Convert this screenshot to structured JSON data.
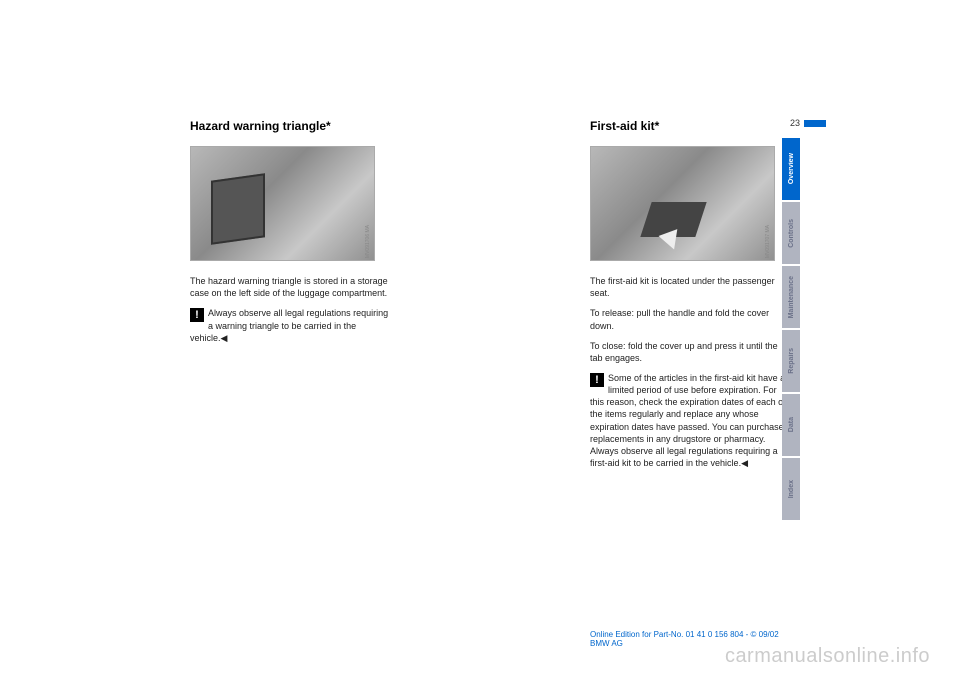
{
  "page_number": "23",
  "left": {
    "heading": "Hazard warning triangle*",
    "fig_caption": "MV091706 MA",
    "p1": "The hazard warning triangle is stored in a storage case on the left side of the luggage compartment.",
    "warn": "Always observe all legal regulations requiring a warning triangle to be carried in the vehicle.◀"
  },
  "right": {
    "heading": "First-aid kit*",
    "fig_caption": "MV091707 MA",
    "p1": "The first-aid kit is located under the passenger seat.",
    "p2": "To release: pull the handle and fold the cover down.",
    "p3": "To close: fold the cover up and press it until the tab engages.",
    "warn": "Some of the articles in the first-aid kit have a limited period of use before expiration. For this reason, check the expiration dates of each of the items regularly and replace any whose expiration dates have passed. You can purchase replacements in any drugstore or pharmacy.",
    "warn2": "Always observe all legal regulations requiring a first-aid kit to be carried in the vehicle.◀"
  },
  "tabs": {
    "t1": "Overview",
    "t2": "Controls",
    "t3": "Maintenance",
    "t4": "Repairs",
    "t5": "Data",
    "t6": "Index"
  },
  "footer": "Online Edition for Part-No. 01 41 0 156 804 - © 09/02 BMW AG",
  "watermark": "carmanualsonline.info",
  "colors": {
    "accent": "#0066cc",
    "tab_inactive_bg": "#b0b4c0",
    "tab_inactive_text": "#6a7088"
  }
}
